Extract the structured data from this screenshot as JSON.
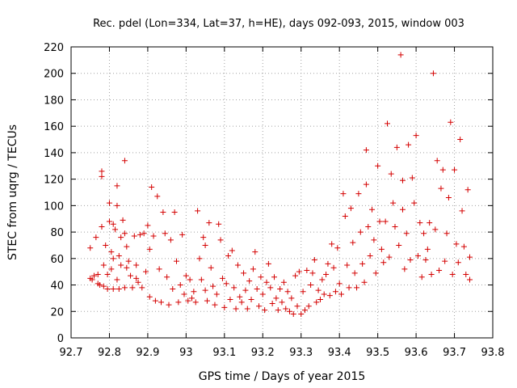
{
  "chart_data": {
    "type": "scatter",
    "title": "Rec. pdel (Lon=334, Lat=37, h=HE), days 092-093, 2015, window 003",
    "xlabel": "GPS time / Days of year 2015",
    "ylabel": "STEC from uqrg / TECUs",
    "xlim": [
      92.7,
      93.8
    ],
    "ylim": [
      0,
      220
    ],
    "grid": true,
    "marker": "+",
    "color": "#d40000",
    "xticks": [
      92.7,
      92.8,
      92.9,
      93.0,
      93.1,
      93.2,
      93.3,
      93.4,
      93.5,
      93.6,
      93.7,
      93.8
    ],
    "xtick_labels": [
      "92.7",
      "92.8",
      "92.9",
      "93",
      "93.1",
      "93.2",
      "93.3",
      "93.4",
      "93.5",
      "93.6",
      "93.7",
      "93.8"
    ],
    "yticks": [
      0,
      20,
      40,
      60,
      80,
      100,
      120,
      140,
      160,
      180,
      200,
      220
    ],
    "ytick_labels": [
      "0",
      "20",
      "40",
      "60",
      "80",
      "100",
      "120",
      "140",
      "160",
      "180",
      "200",
      "220"
    ],
    "points": [
      [
        92.75,
        68
      ],
      [
        92.75,
        45
      ],
      [
        92.755,
        44
      ],
      [
        92.76,
        47
      ],
      [
        92.765,
        76
      ],
      [
        92.77,
        48
      ],
      [
        92.77,
        41
      ],
      [
        92.775,
        40
      ],
      [
        92.78,
        126
      ],
      [
        92.78,
        122
      ],
      [
        92.78,
        84
      ],
      [
        92.785,
        55
      ],
      [
        92.785,
        39
      ],
      [
        92.79,
        70
      ],
      [
        92.795,
        48
      ],
      [
        92.795,
        37
      ],
      [
        92.8,
        102
      ],
      [
        92.8,
        88
      ],
      [
        92.805,
        65
      ],
      [
        92.805,
        52
      ],
      [
        92.81,
        86
      ],
      [
        92.81,
        60
      ],
      [
        92.81,
        37
      ],
      [
        92.815,
        82
      ],
      [
        92.82,
        115
      ],
      [
        92.82,
        100
      ],
      [
        92.82,
        44
      ],
      [
        92.825,
        62
      ],
      [
        92.825,
        37
      ],
      [
        92.83,
        76
      ],
      [
        92.83,
        55
      ],
      [
        92.835,
        89
      ],
      [
        92.84,
        134
      ],
      [
        92.84,
        79
      ],
      [
        92.84,
        38
      ],
      [
        92.845,
        69
      ],
      [
        92.845,
        53
      ],
      [
        92.85,
        58
      ],
      [
        92.855,
        47
      ],
      [
        92.86,
        38
      ],
      [
        92.865,
        77
      ],
      [
        92.87,
        55
      ],
      [
        92.87,
        45
      ],
      [
        92.875,
        42
      ],
      [
        92.88,
        78
      ],
      [
        92.885,
        38
      ],
      [
        92.89,
        79
      ],
      [
        92.895,
        50
      ],
      [
        92.9,
        85
      ],
      [
        92.905,
        67
      ],
      [
        92.905,
        31
      ],
      [
        92.91,
        114
      ],
      [
        92.915,
        77
      ],
      [
        92.92,
        28
      ],
      [
        92.925,
        107
      ],
      [
        92.93,
        52
      ],
      [
        92.935,
        27
      ],
      [
        92.94,
        95
      ],
      [
        92.945,
        79
      ],
      [
        92.95,
        46
      ],
      [
        92.955,
        25
      ],
      [
        92.96,
        74
      ],
      [
        92.965,
        37
      ],
      [
        92.97,
        95
      ],
      [
        92.975,
        58
      ],
      [
        92.98,
        27
      ],
      [
        92.985,
        40
      ],
      [
        92.99,
        78
      ],
      [
        92.995,
        33
      ],
      [
        93.0,
        47
      ],
      [
        93.005,
        28
      ],
      [
        93.01,
        44
      ],
      [
        93.015,
        30
      ],
      [
        93.02,
        35
      ],
      [
        93.025,
        27
      ],
      [
        93.03,
        96
      ],
      [
        93.035,
        60
      ],
      [
        93.04,
        44
      ],
      [
        93.045,
        76
      ],
      [
        93.05,
        70
      ],
      [
        93.05,
        36
      ],
      [
        93.055,
        28
      ],
      [
        93.06,
        87
      ],
      [
        93.065,
        53
      ],
      [
        93.07,
        39
      ],
      [
        93.075,
        25
      ],
      [
        93.08,
        33
      ],
      [
        93.085,
        86
      ],
      [
        93.09,
        74
      ],
      [
        93.095,
        45
      ],
      [
        93.1,
        23
      ],
      [
        93.105,
        41
      ],
      [
        93.11,
        62
      ],
      [
        93.115,
        29
      ],
      [
        93.12,
        66
      ],
      [
        93.125,
        38
      ],
      [
        93.13,
        22
      ],
      [
        93.135,
        55
      ],
      [
        93.14,
        31
      ],
      [
        93.145,
        27
      ],
      [
        93.15,
        49
      ],
      [
        93.155,
        36
      ],
      [
        93.16,
        22
      ],
      [
        93.165,
        43
      ],
      [
        93.17,
        29
      ],
      [
        93.175,
        52
      ],
      [
        93.18,
        65
      ],
      [
        93.185,
        37
      ],
      [
        93.19,
        24
      ],
      [
        93.195,
        46
      ],
      [
        93.2,
        33
      ],
      [
        93.205,
        21
      ],
      [
        93.21,
        42
      ],
      [
        93.215,
        56
      ],
      [
        93.22,
        38
      ],
      [
        93.225,
        26
      ],
      [
        93.23,
        46
      ],
      [
        93.235,
        30
      ],
      [
        93.24,
        21
      ],
      [
        93.245,
        37
      ],
      [
        93.25,
        27
      ],
      [
        93.255,
        42
      ],
      [
        93.26,
        22
      ],
      [
        93.265,
        35
      ],
      [
        93.27,
        20
      ],
      [
        93.275,
        30
      ],
      [
        93.28,
        18
      ],
      [
        93.285,
        47
      ],
      [
        93.29,
        24
      ],
      [
        93.295,
        50
      ],
      [
        93.3,
        18
      ],
      [
        93.305,
        35
      ],
      [
        93.31,
        21
      ],
      [
        93.315,
        51
      ],
      [
        93.32,
        24
      ],
      [
        93.325,
        40
      ],
      [
        93.33,
        49
      ],
      [
        93.335,
        59
      ],
      [
        93.34,
        27
      ],
      [
        93.345,
        36
      ],
      [
        93.35,
        29
      ],
      [
        93.355,
        44
      ],
      [
        93.36,
        33
      ],
      [
        93.365,
        48
      ],
      [
        93.37,
        56
      ],
      [
        93.375,
        32
      ],
      [
        93.38,
        71
      ],
      [
        93.385,
        53
      ],
      [
        93.39,
        35
      ],
      [
        93.395,
        68
      ],
      [
        93.4,
        41
      ],
      [
        93.405,
        33
      ],
      [
        93.41,
        109
      ],
      [
        93.415,
        92
      ],
      [
        93.42,
        55
      ],
      [
        93.425,
        38
      ],
      [
        93.43,
        98
      ],
      [
        93.435,
        72
      ],
      [
        93.44,
        49
      ],
      [
        93.445,
        38
      ],
      [
        93.45,
        109
      ],
      [
        93.455,
        80
      ],
      [
        93.46,
        56
      ],
      [
        93.465,
        42
      ],
      [
        93.47,
        116
      ],
      [
        93.47,
        142
      ],
      [
        93.475,
        84
      ],
      [
        93.48,
        62
      ],
      [
        93.485,
        97
      ],
      [
        93.49,
        74
      ],
      [
        93.495,
        49
      ],
      [
        93.5,
        130
      ],
      [
        93.505,
        88
      ],
      [
        93.51,
        67
      ],
      [
        93.515,
        57
      ],
      [
        93.52,
        88
      ],
      [
        93.525,
        162
      ],
      [
        93.53,
        61
      ],
      [
        93.535,
        124
      ],
      [
        93.54,
        102
      ],
      [
        93.545,
        84
      ],
      [
        93.55,
        144
      ],
      [
        93.555,
        70
      ],
      [
        93.56,
        214
      ],
      [
        93.565,
        97
      ],
      [
        93.565,
        119
      ],
      [
        93.57,
        52
      ],
      [
        93.575,
        79
      ],
      [
        93.58,
        146
      ],
      [
        93.585,
        59
      ],
      [
        93.59,
        121
      ],
      [
        93.595,
        102
      ],
      [
        93.6,
        153
      ],
      [
        93.605,
        62
      ],
      [
        93.61,
        87
      ],
      [
        93.615,
        46
      ],
      [
        93.62,
        79
      ],
      [
        93.625,
        59
      ],
      [
        93.63,
        67
      ],
      [
        93.635,
        87
      ],
      [
        93.64,
        48
      ],
      [
        93.645,
        200
      ],
      [
        93.65,
        82
      ],
      [
        93.655,
        134
      ],
      [
        93.66,
        51
      ],
      [
        93.665,
        113
      ],
      [
        93.67,
        127
      ],
      [
        93.675,
        58
      ],
      [
        93.68,
        79
      ],
      [
        93.685,
        106
      ],
      [
        93.69,
        163
      ],
      [
        93.695,
        48
      ],
      [
        93.7,
        127
      ],
      [
        93.705,
        71
      ],
      [
        93.71,
        57
      ],
      [
        93.715,
        150
      ],
      [
        93.72,
        96
      ],
      [
        93.725,
        69
      ],
      [
        93.73,
        48
      ],
      [
        93.735,
        112
      ],
      [
        93.74,
        61
      ],
      [
        93.74,
        44
      ]
    ]
  }
}
